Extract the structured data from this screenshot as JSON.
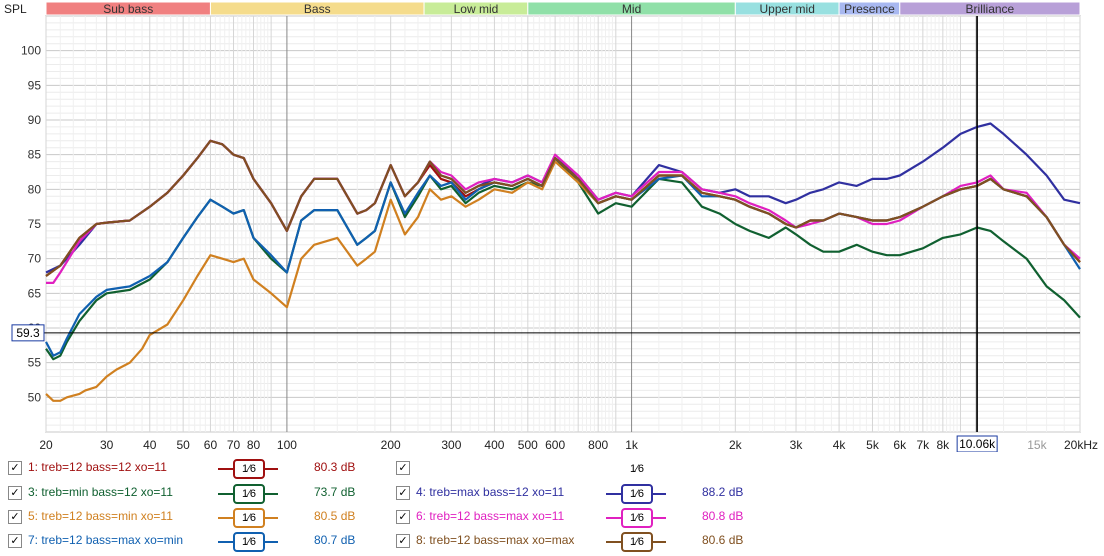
{
  "chart_data": {
    "type": "line",
    "ylabel": "SPL",
    "x_scale": "log",
    "xlim": [
      20,
      20000
    ],
    "ylim": [
      45,
      105
    ],
    "y_ticks": [
      50,
      55,
      60,
      65,
      70,
      75,
      80,
      85,
      90,
      95,
      100
    ],
    "x_tick_labels": [
      {
        "x": 20,
        "label": "20"
      },
      {
        "x": 30,
        "label": "30"
      },
      {
        "x": 40,
        "label": "40"
      },
      {
        "x": 50,
        "label": "50"
      },
      {
        "x": 60,
        "label": "60"
      },
      {
        "x": 70,
        "label": "70"
      },
      {
        "x": 80,
        "label": "80"
      },
      {
        "x": 100,
        "label": "100"
      },
      {
        "x": 200,
        "label": "200"
      },
      {
        "x": 300,
        "label": "300"
      },
      {
        "x": 400,
        "label": "400"
      },
      {
        "x": 500,
        "label": "500"
      },
      {
        "x": 600,
        "label": "600"
      },
      {
        "x": 800,
        "label": "800"
      },
      {
        "x": 1000,
        "label": "1k"
      },
      {
        "x": 2000,
        "label": "2k"
      },
      {
        "x": 3000,
        "label": "3k"
      },
      {
        "x": 4000,
        "label": "4k"
      },
      {
        "x": 5000,
        "label": "5k"
      },
      {
        "x": 6000,
        "label": "6k"
      },
      {
        "x": 7000,
        "label": "7k"
      },
      {
        "x": 8000,
        "label": "8k"
      },
      {
        "x": 15000,
        "label": "15k"
      },
      {
        "x": 20000,
        "label": "20kHz"
      }
    ],
    "bands": [
      {
        "name": "Sub bass",
        "from": 20,
        "to": 60,
        "color": "#f08080"
      },
      {
        "name": "Bass",
        "from": 60,
        "to": 250,
        "color": "#f5dc8c"
      },
      {
        "name": "Low mid",
        "from": 250,
        "to": 500,
        "color": "#c8ec98"
      },
      {
        "name": "Mid",
        "from": 500,
        "to": 2000,
        "color": "#90e0a8"
      },
      {
        "name": "Upper mid",
        "from": 2000,
        "to": 4000,
        "color": "#98e0e0"
      },
      {
        "name": "Presence",
        "from": 4000,
        "to": 6000,
        "color": "#a8b8f0"
      },
      {
        "name": "Brilliance",
        "from": 6000,
        "to": 20000,
        "color": "#b8a0d8"
      }
    ],
    "cursor": {
      "x": 10060,
      "x_label": "10.06k",
      "y": 59.3,
      "y_label": "59.3"
    },
    "series": [
      {
        "id": 1,
        "name": "treb=12 bass=12 xo=11",
        "color": "#a01010",
        "value_label": "80.3 dB",
        "x": [
          20,
          22,
          25,
          28,
          30,
          35,
          40,
          45,
          50,
          55,
          60,
          65,
          70,
          75,
          80,
          90,
          100,
          110,
          120,
          140,
          160,
          170,
          180,
          200,
          220,
          240,
          260,
          280,
          300,
          330,
          360,
          400,
          450,
          500,
          550,
          600,
          700,
          800,
          900,
          1000,
          1200,
          1400,
          1600,
          1800,
          2000,
          2200,
          2500,
          2800,
          3000,
          3300,
          3600,
          4000,
          4500,
          5000,
          5500,
          6000,
          7000,
          8000,
          9000,
          10060,
          11000,
          12000,
          14000,
          16000,
          18000,
          20000
        ],
        "y": [
          67.5,
          69,
          73,
          75,
          75.2,
          75.5,
          77.5,
          79.5,
          82,
          84.5,
          87,
          86.5,
          85,
          84.5,
          81.5,
          78,
          74,
          79,
          81.5,
          81.5,
          76.5,
          77,
          78,
          83.5,
          79,
          81,
          83.5,
          81.5,
          81,
          79,
          80,
          81,
          80.5,
          81.5,
          80.5,
          84.5,
          81.5,
          78,
          79,
          78.5,
          82,
          82,
          79.5,
          79,
          78.5,
          77.5,
          76.5,
          75,
          74.5,
          75.5,
          75.5,
          76.5,
          76,
          75.5,
          75.5,
          76,
          77.5,
          79,
          80,
          80.5,
          81.5,
          80,
          79,
          76,
          72,
          69.5
        ]
      },
      {
        "id": 3,
        "name": "treb=min bass=12 xo=11",
        "color": "#106030",
        "value_label": "73.7 dB",
        "x": [
          20,
          21,
          22,
          23,
          25,
          28,
          30,
          35,
          40,
          45,
          50,
          55,
          60,
          65,
          70,
          75,
          80,
          90,
          100,
          110,
          120,
          140,
          160,
          170,
          180,
          200,
          220,
          240,
          260,
          280,
          300,
          330,
          360,
          400,
          450,
          500,
          550,
          600,
          700,
          800,
          900,
          1000,
          1200,
          1400,
          1600,
          1800,
          2000,
          2200,
          2500,
          2800,
          3000,
          3300,
          3600,
          4000,
          4500,
          5000,
          5500,
          6000,
          7000,
          8000,
          9000,
          10060,
          11000,
          12000,
          14000,
          16000,
          18000,
          20000
        ],
        "y": [
          57,
          55.5,
          56,
          58,
          61,
          64,
          65,
          65.5,
          67,
          69.5,
          73,
          76,
          78.5,
          77.5,
          76.5,
          77,
          73,
          70,
          68,
          75.5,
          77,
          77,
          72,
          73,
          74,
          81,
          76,
          79,
          82,
          80,
          80.5,
          78,
          79.5,
          80.5,
          80,
          81,
          80.5,
          84.5,
          81,
          76.5,
          78,
          77.5,
          81.5,
          81,
          77.5,
          76.5,
          75,
          74,
          73,
          74.5,
          73.5,
          72,
          71,
          71,
          72,
          71,
          70.5,
          70.5,
          71.5,
          73,
          73.5,
          74.5,
          74,
          72.5,
          70,
          66,
          64,
          61.5
        ]
      },
      {
        "id": 4,
        "name": "treb=max bass=12 xo=11",
        "color": "#3030a0",
        "value_label": "88.2 dB",
        "x": [
          20,
          22,
          25,
          28,
          30,
          35,
          40,
          45,
          50,
          55,
          60,
          65,
          70,
          75,
          80,
          90,
          100,
          110,
          120,
          140,
          160,
          170,
          180,
          200,
          220,
          240,
          260,
          280,
          300,
          330,
          360,
          400,
          450,
          500,
          550,
          600,
          700,
          800,
          900,
          1000,
          1200,
          1400,
          1600,
          1800,
          2000,
          2200,
          2500,
          2800,
          3000,
          3300,
          3600,
          4000,
          4500,
          5000,
          5500,
          6000,
          7000,
          8000,
          9000,
          10060,
          11000,
          12000,
          14000,
          16000,
          18000,
          20000
        ],
        "y": [
          68,
          69,
          72,
          75,
          75.2,
          75.5,
          77.5,
          79.5,
          82,
          84.5,
          87,
          86.5,
          85,
          84.5,
          81.5,
          78,
          74,
          79,
          81.5,
          81.5,
          76.5,
          77,
          78,
          83.5,
          79,
          81,
          84,
          82,
          81.5,
          79.5,
          80.5,
          81.5,
          81,
          82,
          81,
          84.5,
          82,
          78.5,
          79.5,
          79,
          83.5,
          82.5,
          80,
          79.5,
          80,
          79,
          79,
          78,
          78.5,
          79.5,
          80,
          81,
          80.5,
          81.5,
          81.5,
          82,
          84,
          86,
          88,
          89,
          89.5,
          88,
          85,
          82,
          78.5,
          78
        ]
      },
      {
        "id": 5,
        "name": "treb=12 bass=min xo=11",
        "color": "#d08020",
        "value_label": "80.5 dB",
        "x": [
          20,
          21,
          22,
          23,
          25,
          26,
          28,
          30,
          32,
          35,
          38,
          40,
          45,
          50,
          55,
          60,
          65,
          70,
          75,
          80,
          90,
          100,
          110,
          120,
          140,
          160,
          170,
          180,
          200,
          220,
          240,
          260,
          280,
          300,
          330,
          360,
          400,
          450,
          500,
          550,
          600,
          700,
          800,
          900,
          1000,
          1200,
          1400,
          1600,
          1800,
          2000,
          2200,
          2500,
          2800,
          3000,
          3300,
          3600,
          4000,
          4500,
          5000,
          5500,
          6000,
          7000,
          8000,
          9000,
          10060,
          11000,
          12000,
          14000,
          16000,
          18000,
          20000
        ],
        "y": [
          50.5,
          49.5,
          49.5,
          50,
          50.5,
          51,
          51.5,
          53,
          54,
          55,
          57,
          59,
          60.5,
          64,
          67.5,
          70.5,
          70,
          69.5,
          70,
          67,
          65,
          63,
          70,
          72,
          73,
          69,
          70,
          71,
          78.5,
          73.5,
          76,
          80,
          78.5,
          79,
          77.5,
          78.5,
          80,
          79.5,
          81,
          80,
          84,
          81,
          78,
          79,
          78.5,
          82,
          82,
          79.5,
          79,
          78.5,
          77.5,
          76.5,
          75,
          74.5,
          75.5,
          75.5,
          76.5,
          76,
          75.5,
          75.5,
          76,
          77.5,
          79,
          80,
          80.5,
          81.5,
          80,
          79,
          76,
          72,
          69.5
        ]
      },
      {
        "id": 6,
        "name": "treb=12 bass=max xo=11",
        "color": "#e020c0",
        "value_label": "80.8 dB",
        "x": [
          20,
          21,
          22,
          25,
          28,
          30,
          35,
          40,
          45,
          50,
          55,
          60,
          65,
          70,
          75,
          80,
          90,
          100,
          110,
          120,
          140,
          160,
          170,
          180,
          200,
          220,
          240,
          260,
          280,
          300,
          330,
          360,
          400,
          450,
          500,
          550,
          600,
          700,
          800,
          900,
          1000,
          1200,
          1400,
          1600,
          1800,
          2000,
          2200,
          2500,
          2800,
          3000,
          3300,
          3600,
          4000,
          4500,
          5000,
          5500,
          6000,
          7000,
          8000,
          9000,
          10060,
          11000,
          12000,
          14000,
          16000,
          18000,
          20000
        ],
        "y": [
          66.5,
          66.5,
          68,
          72.5,
          75,
          75.2,
          75.5,
          77.5,
          79.5,
          82,
          84.5,
          87,
          86.5,
          85,
          84.5,
          81.5,
          78,
          74,
          79,
          81.5,
          81.5,
          76.5,
          77,
          78,
          83.5,
          79,
          81,
          84,
          82.5,
          82,
          80,
          81,
          81.5,
          81,
          82,
          81,
          85,
          82,
          78.5,
          79.5,
          79,
          82.5,
          82.5,
          80,
          79.5,
          79,
          78,
          77,
          75.5,
          74.5,
          75,
          75.5,
          76.5,
          76,
          75,
          75,
          75.5,
          77.5,
          79,
          80.5,
          81,
          82,
          80,
          79.5,
          76,
          72,
          70
        ]
      },
      {
        "id": 7,
        "name": "treb=12 bass=max xo=min",
        "color": "#1060b0",
        "value_label": "80.7 dB",
        "x": [
          20,
          21,
          22,
          23,
          25,
          28,
          30,
          35,
          40,
          45,
          50,
          55,
          60,
          65,
          70,
          75,
          80,
          90,
          100,
          110,
          120,
          140,
          160,
          170,
          180,
          200,
          220,
          240,
          260,
          280,
          300,
          330,
          360,
          400,
          450,
          500,
          550,
          600,
          700,
          800,
          900,
          1000,
          1200,
          1400,
          1600,
          1800,
          2000,
          2200,
          2500,
          2800,
          3000,
          3300,
          3600,
          4000,
          4500,
          5000,
          5500,
          6000,
          7000,
          8000,
          9000,
          10060,
          11000,
          12000,
          14000,
          16000,
          18000,
          20000
        ],
        "y": [
          58,
          56,
          56.5,
          58.5,
          62,
          64.5,
          65.5,
          66,
          67.5,
          69.5,
          73,
          76,
          78.5,
          77.5,
          76.5,
          77,
          73,
          70.5,
          68,
          75.5,
          77,
          77,
          72,
          73,
          74,
          81,
          76.5,
          79.5,
          82,
          80.5,
          81,
          78.5,
          80,
          81,
          80.5,
          81.5,
          80.5,
          84.5,
          81.5,
          78,
          79,
          78.5,
          81.5,
          82,
          79,
          79,
          78.5,
          77.5,
          76.5,
          75,
          74.5,
          75.5,
          75.5,
          76.5,
          76,
          75.5,
          75.5,
          76,
          77.5,
          79,
          80,
          80.5,
          81.5,
          80,
          79,
          76,
          72,
          68.5
        ]
      },
      {
        "id": 8,
        "name": "treb=12 bass=max xo=max",
        "color": "#805020",
        "value_label": "80.6 dB",
        "x": [
          20,
          22,
          25,
          28,
          30,
          35,
          40,
          45,
          50,
          55,
          60,
          65,
          70,
          75,
          80,
          90,
          100,
          110,
          120,
          140,
          160,
          170,
          180,
          200,
          220,
          240,
          260,
          280,
          300,
          330,
          360,
          400,
          450,
          500,
          550,
          600,
          700,
          800,
          900,
          1000,
          1200,
          1400,
          1600,
          1800,
          2000,
          2200,
          2500,
          2800,
          3000,
          3300,
          3600,
          4000,
          4500,
          5000,
          5500,
          6000,
          7000,
          8000,
          9000,
          10060,
          11000,
          12000,
          14000,
          16000,
          18000,
          20000
        ],
        "y": [
          67.5,
          69,
          73,
          75,
          75.2,
          75.5,
          77.5,
          79.5,
          82,
          84.5,
          87,
          86.5,
          85,
          84.5,
          81.5,
          78,
          74,
          79,
          81.5,
          81.5,
          76.5,
          77,
          78,
          83.5,
          79,
          81,
          84,
          82,
          81.5,
          79.5,
          80.5,
          81,
          80.5,
          81.5,
          80.5,
          84.5,
          81.5,
          78,
          79,
          78.5,
          82,
          82,
          79.5,
          79,
          78.5,
          77.5,
          76.5,
          75,
          74.5,
          75.5,
          75.5,
          76.5,
          76,
          75.5,
          75.5,
          76,
          77.5,
          79,
          80,
          80.5,
          81.5,
          80,
          79,
          76,
          72,
          69.5
        ]
      }
    ]
  },
  "legend": {
    "rows": [
      {
        "left": {
          "label": "1: treb=12 bass=12 xo=11",
          "color": "#a01010",
          "smoothing": "1⁄6",
          "value": "80.3 dB",
          "checked": true
        },
        "right": {
          "label": "",
          "color": "",
          "smoothing": "1⁄6",
          "value": "",
          "checked": true
        }
      },
      {
        "left": {
          "label": "3: treb=min bass=12 xo=11",
          "color": "#106030",
          "smoothing": "1⁄6",
          "value": "73.7 dB",
          "checked": true
        },
        "right": {
          "label": "4: treb=max bass=12 xo=11",
          "color": "#3030a0",
          "smoothing": "1⁄6",
          "value": "88.2 dB",
          "checked": true
        }
      },
      {
        "left": {
          "label": "5: treb=12 bass=min xo=11",
          "color": "#d08020",
          "smoothing": "1⁄6",
          "value": "80.5 dB",
          "checked": true
        },
        "right": {
          "label": "6: treb=12 bass=max xo=11",
          "color": "#e020c0",
          "smoothing": "1⁄6",
          "value": "80.8 dB",
          "checked": true
        }
      },
      {
        "left": {
          "label": "7: treb=12 bass=max xo=min",
          "color": "#1060b0",
          "smoothing": "1⁄6",
          "value": "80.7 dB",
          "checked": true
        },
        "right": {
          "label": "8: treb=12 bass=max xo=max",
          "color": "#805020",
          "smoothing": "1⁄6",
          "value": "80.6 dB",
          "checked": true
        }
      }
    ]
  }
}
